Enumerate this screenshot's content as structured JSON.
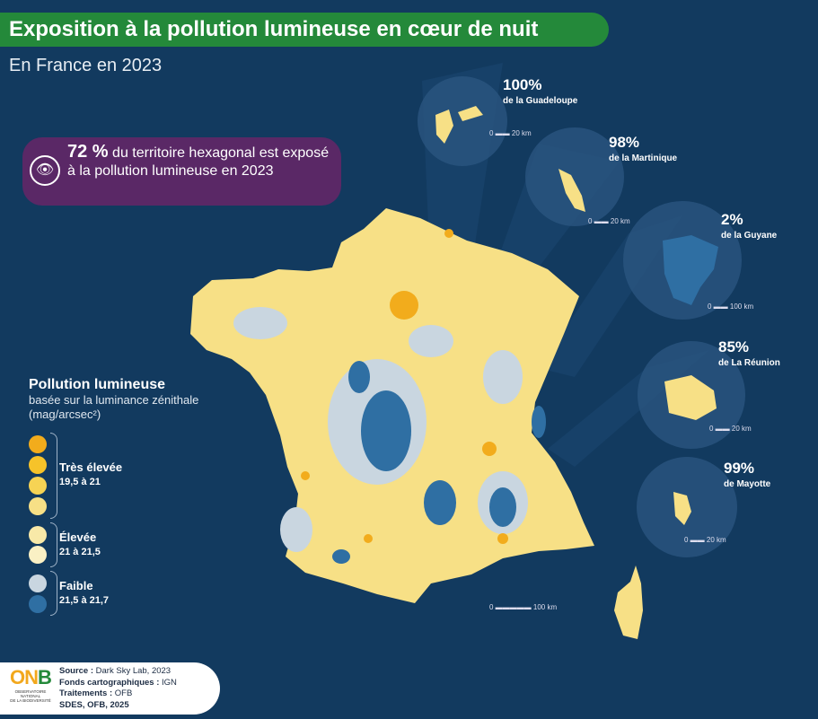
{
  "header": {
    "title": "Exposition à la pollution lumineuse en cœur de nuit",
    "subtitle": "En France en 2023"
  },
  "callout": {
    "icon": "eye-icon",
    "value": "72 %",
    "text": "du territoire hexagonal est exposé à la pollution lumineuse en 2023"
  },
  "legend": {
    "title": "Pollution lumineuse",
    "subtitle": "basée sur la luminance zénithale",
    "unit": "(mag/arcsec²)",
    "classes": [
      {
        "label": "Très élevée",
        "range": "19,5 à 21",
        "colors": [
          "#f2ac1c",
          "#f6c32a",
          "#f6d354",
          "#f7e086"
        ]
      },
      {
        "label": "Élevée",
        "range": "21 à 21,5",
        "colors": [
          "#f8e9a8",
          "#faf0c4"
        ]
      },
      {
        "label": "Faible",
        "range": "21,5 à 21,7",
        "colors": [
          "#c9d6e0",
          "#2f6fa3"
        ]
      }
    ]
  },
  "territories": [
    {
      "name": "de la Guadeloupe",
      "value": "100%",
      "scale": "20 km"
    },
    {
      "name": "de la Martinique",
      "value": "98%",
      "scale": "20 km"
    },
    {
      "name": "de la Guyane",
      "value": "2%",
      "scale": "100 km"
    },
    {
      "name": "de La Réunion",
      "value": "85%",
      "scale": "20 km"
    },
    {
      "name": "de Mayotte",
      "value": "99%",
      "scale": "20 km"
    }
  ],
  "mainland_scale": "100 km",
  "footer": {
    "logo": "ONB",
    "logo_caption": "OBSERVATOIRE NATIONAL DE LA BIODIVERSITÉ",
    "source_label": "Source :",
    "source": "Dark Sky Lab, 2023",
    "basemap_label": "Fonds cartographiques :",
    "basemap": "IGN",
    "processing_label": "Traitements :",
    "processing": "OFB",
    "credit": "SDES, OFB, 2025"
  },
  "colors": {
    "background": "#123a5f",
    "title_bar": "#24893a",
    "callout": "#5a2866",
    "low": "#2f6fa3",
    "high": "#f6c32a"
  }
}
